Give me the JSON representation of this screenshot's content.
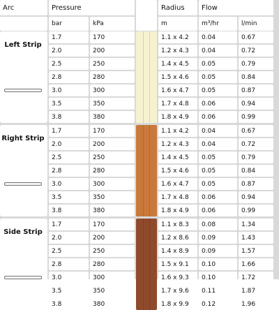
{
  "headers": {
    "arc": "Arc",
    "pressure": "Pressure",
    "radius": "Radius",
    "flow": "Flow",
    "bar": "bar",
    "kpa": "kPa",
    "m": "m",
    "m3hr": "m³/hr",
    "lmin": "l/min"
  },
  "colors": {
    "left": "#f6f1cf",
    "right": "#c9793a",
    "side": "#8f4a2c"
  },
  "groups": [
    {
      "label": "Left Strip",
      "rows": [
        {
          "bar": "1.7",
          "kpa": "170",
          "radius": "1.1 x 4.2",
          "m3hr": "0.04",
          "lmin": "0.67"
        },
        {
          "bar": "2.0",
          "kpa": "200",
          "radius": "1.2 x 4.3",
          "m3hr": "0.04",
          "lmin": "0.72"
        },
        {
          "bar": "2.5",
          "kpa": "250",
          "radius": "1.4 x 4.5",
          "m3hr": "0.05",
          "lmin": "0.79"
        },
        {
          "bar": "2.8",
          "kpa": "280",
          "radius": "1.5 x 4.6",
          "m3hr": "0.05",
          "lmin": "0.84"
        },
        {
          "bar": "3.0",
          "kpa": "300",
          "radius": "1.6 x 4.7",
          "m3hr": "0.05",
          "lmin": "0.87"
        },
        {
          "bar": "3.5",
          "kpa": "350",
          "radius": "1.7 x 4.8",
          "m3hr": "0.06",
          "lmin": "0.94"
        },
        {
          "bar": "3.8",
          "kpa": "380",
          "radius": "1.8 x 4.9",
          "m3hr": "0.06",
          "lmin": "0.99"
        }
      ]
    },
    {
      "label": "Right Strip",
      "rows": [
        {
          "bar": "1.7",
          "kpa": "170",
          "radius": "1.1 x 4.2",
          "m3hr": "0.04",
          "lmin": "0.67"
        },
        {
          "bar": "2.0",
          "kpa": "200",
          "radius": "1.2 x 4.3",
          "m3hr": "0.04",
          "lmin": "0.72"
        },
        {
          "bar": "2.5",
          "kpa": "250",
          "radius": "1.4 x 4.5",
          "m3hr": "0.05",
          "lmin": "0.79"
        },
        {
          "bar": "2.8",
          "kpa": "280",
          "radius": "1.5 x 4.6",
          "m3hr": "0.05",
          "lmin": "0.84"
        },
        {
          "bar": "3.0",
          "kpa": "300",
          "radius": "1.6 x 4.7",
          "m3hr": "0.05",
          "lmin": "0.87"
        },
        {
          "bar": "3.5",
          "kpa": "350",
          "radius": "1.7 x 4.8",
          "m3hr": "0.06",
          "lmin": "0.94"
        },
        {
          "bar": "3.8",
          "kpa": "380",
          "radius": "1.8 x 4.9",
          "m3hr": "0.06",
          "lmin": "0.99"
        }
      ]
    },
    {
      "label": "Side Strip",
      "rows": [
        {
          "bar": "1.7",
          "kpa": "170",
          "radius": "1.1 x 8.3",
          "m3hr": "0.08",
          "lmin": "1.34"
        },
        {
          "bar": "2.0",
          "kpa": "200",
          "radius": "1.2 x 8.6",
          "m3hr": "0.09",
          "lmin": "1.43"
        },
        {
          "bar": "2.5",
          "kpa": "250",
          "radius": "1.4 x 8.9",
          "m3hr": "0.09",
          "lmin": "1.57"
        },
        {
          "bar": "2.8",
          "kpa": "280",
          "radius": "1.5 x 9.1",
          "m3hr": "0.10",
          "lmin": "1.66"
        },
        {
          "bar": "3.0",
          "kpa": "300",
          "radius": "1.6 x 9.3",
          "m3hr": "0.10",
          "lmin": "1.72"
        },
        {
          "bar": "3.5",
          "kpa": "350",
          "radius": "1.7 x 9.6",
          "m3hr": "0.11",
          "lmin": "1.87"
        },
        {
          "bar": "3.8",
          "kpa": "380",
          "radius": "1.8 x 9.9",
          "m3hr": "0.12",
          "lmin": "1.96"
        }
      ]
    }
  ]
}
